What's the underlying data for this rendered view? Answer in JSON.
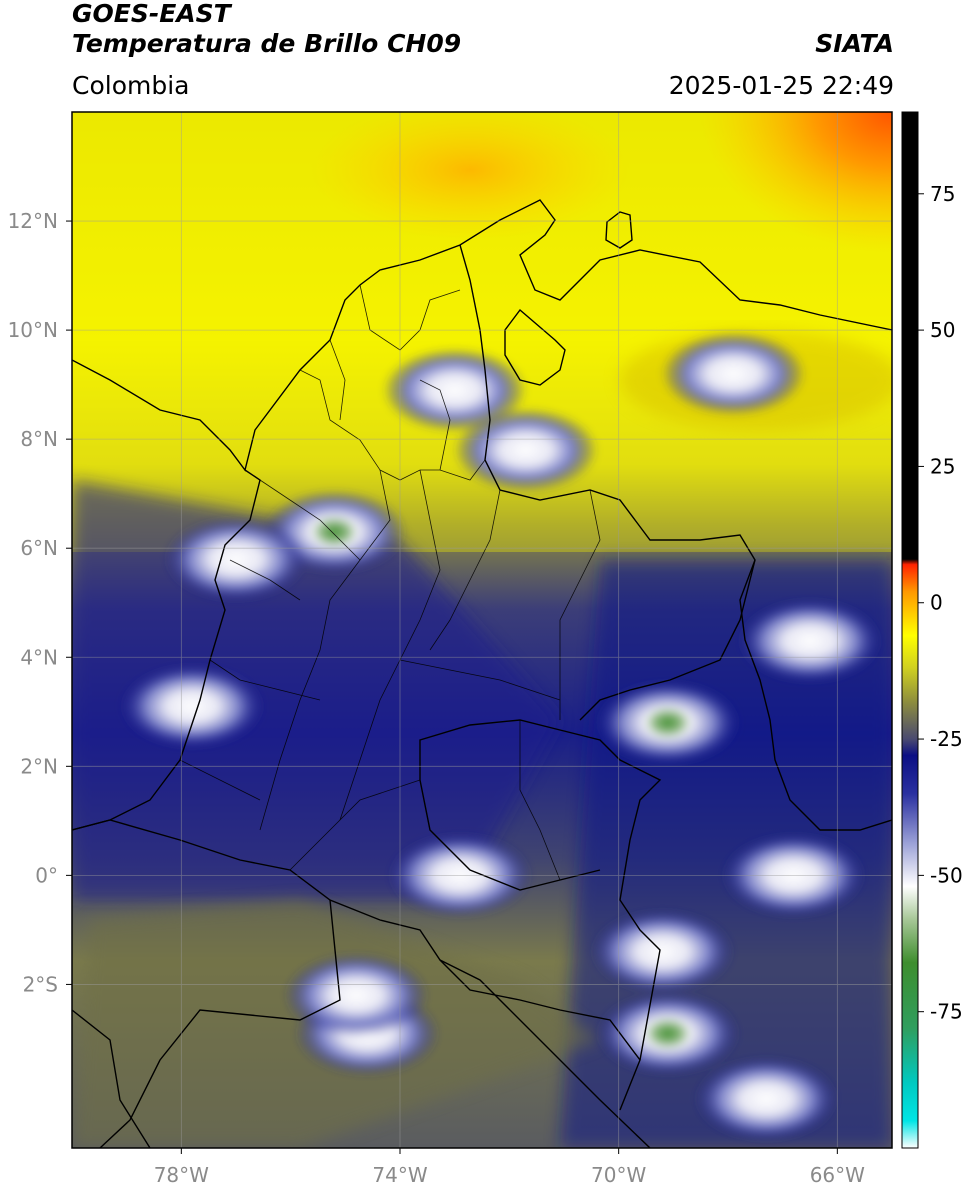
{
  "header": {
    "satellite": "GOES-EAST",
    "product": "Temperatura de Brillo CH09",
    "brand": "SIATA",
    "region": "Colombia",
    "datetime": "2025-01-25 22:49"
  },
  "map": {
    "lon_range": [
      -80,
      -65
    ],
    "lat_range": [
      -5,
      14
    ],
    "lon_ticks": [
      {
        "value": -78,
        "label": "78°W"
      },
      {
        "value": -74,
        "label": "74°W"
      },
      {
        "value": -70,
        "label": "70°W"
      },
      {
        "value": -66,
        "label": "66°W"
      }
    ],
    "lat_ticks": [
      {
        "value": 12,
        "label": "12°N"
      },
      {
        "value": 10,
        "label": "10°N"
      },
      {
        "value": 8,
        "label": "8°N"
      },
      {
        "value": 6,
        "label": "6°N"
      },
      {
        "value": 4,
        "label": "4°N"
      },
      {
        "value": 2,
        "label": "2°N"
      },
      {
        "value": 0,
        "label": "0°"
      },
      {
        "value": -2,
        "label": "2°S"
      }
    ],
    "grid": true,
    "cloud_cells": [
      {
        "lon": -75.2,
        "lat": 6.3,
        "core": true
      },
      {
        "lon": -77.0,
        "lat": 5.8,
        "core": false
      },
      {
        "lon": -69.1,
        "lat": 2.8,
        "core": true
      },
      {
        "lon": -66.8,
        "lat": 0.0,
        "core": false
      },
      {
        "lon": -72.9,
        "lat": 0.0,
        "core": false
      },
      {
        "lon": -69.1,
        "lat": -2.9,
        "core": true
      },
      {
        "lon": -74.6,
        "lat": -2.9,
        "core": false
      },
      {
        "lon": -71.7,
        "lat": 7.8,
        "core": false
      },
      {
        "lon": -67.9,
        "lat": 9.2,
        "core": false
      },
      {
        "lon": -66.5,
        "lat": 4.3,
        "core": false
      },
      {
        "lon": -67.3,
        "lat": -4.1,
        "core": false
      },
      {
        "lon": -77.8,
        "lat": 3.1,
        "core": false
      },
      {
        "lon": -73.0,
        "lat": 8.9,
        "core": false
      },
      {
        "lon": -69.2,
        "lat": -1.4,
        "core": false
      },
      {
        "lon": -74.8,
        "lat": -2.2,
        "core": false
      }
    ]
  },
  "colorbar": {
    "range": [
      -100,
      90
    ],
    "ticks": [
      {
        "value": 75,
        "label": "75"
      },
      {
        "value": 50,
        "label": "50"
      },
      {
        "value": 25,
        "label": "25"
      },
      {
        "value": 0,
        "label": "0"
      },
      {
        "value": -25,
        "label": "-25"
      },
      {
        "value": -50,
        "label": "-50"
      },
      {
        "value": -75,
        "label": "-75"
      }
    ],
    "stops": [
      {
        "value": -100,
        "color": "#ffffff"
      },
      {
        "value": -95,
        "color": "#00e5e5"
      },
      {
        "value": -88,
        "color": "#00c9c0"
      },
      {
        "value": -78,
        "color": "#2f9e5e"
      },
      {
        "value": -66,
        "color": "#3e8e2e"
      },
      {
        "value": -58,
        "color": "#a8c898"
      },
      {
        "value": -52,
        "color": "#ffffff"
      },
      {
        "value": -44,
        "color": "#9aa0d6"
      },
      {
        "value": -35,
        "color": "#2a30a0"
      },
      {
        "value": -28,
        "color": "#0c0f84"
      },
      {
        "value": -25,
        "color": "#4a4a70"
      },
      {
        "value": -18,
        "color": "#8f8f3c"
      },
      {
        "value": -12,
        "color": "#cfd020"
      },
      {
        "value": -6,
        "color": "#ffff00"
      },
      {
        "value": 2,
        "color": "#ff9900"
      },
      {
        "value": 7,
        "color": "#ff2200"
      },
      {
        "value": 8,
        "color": "#000000"
      },
      {
        "value": 90,
        "color": "#000000"
      }
    ]
  }
}
